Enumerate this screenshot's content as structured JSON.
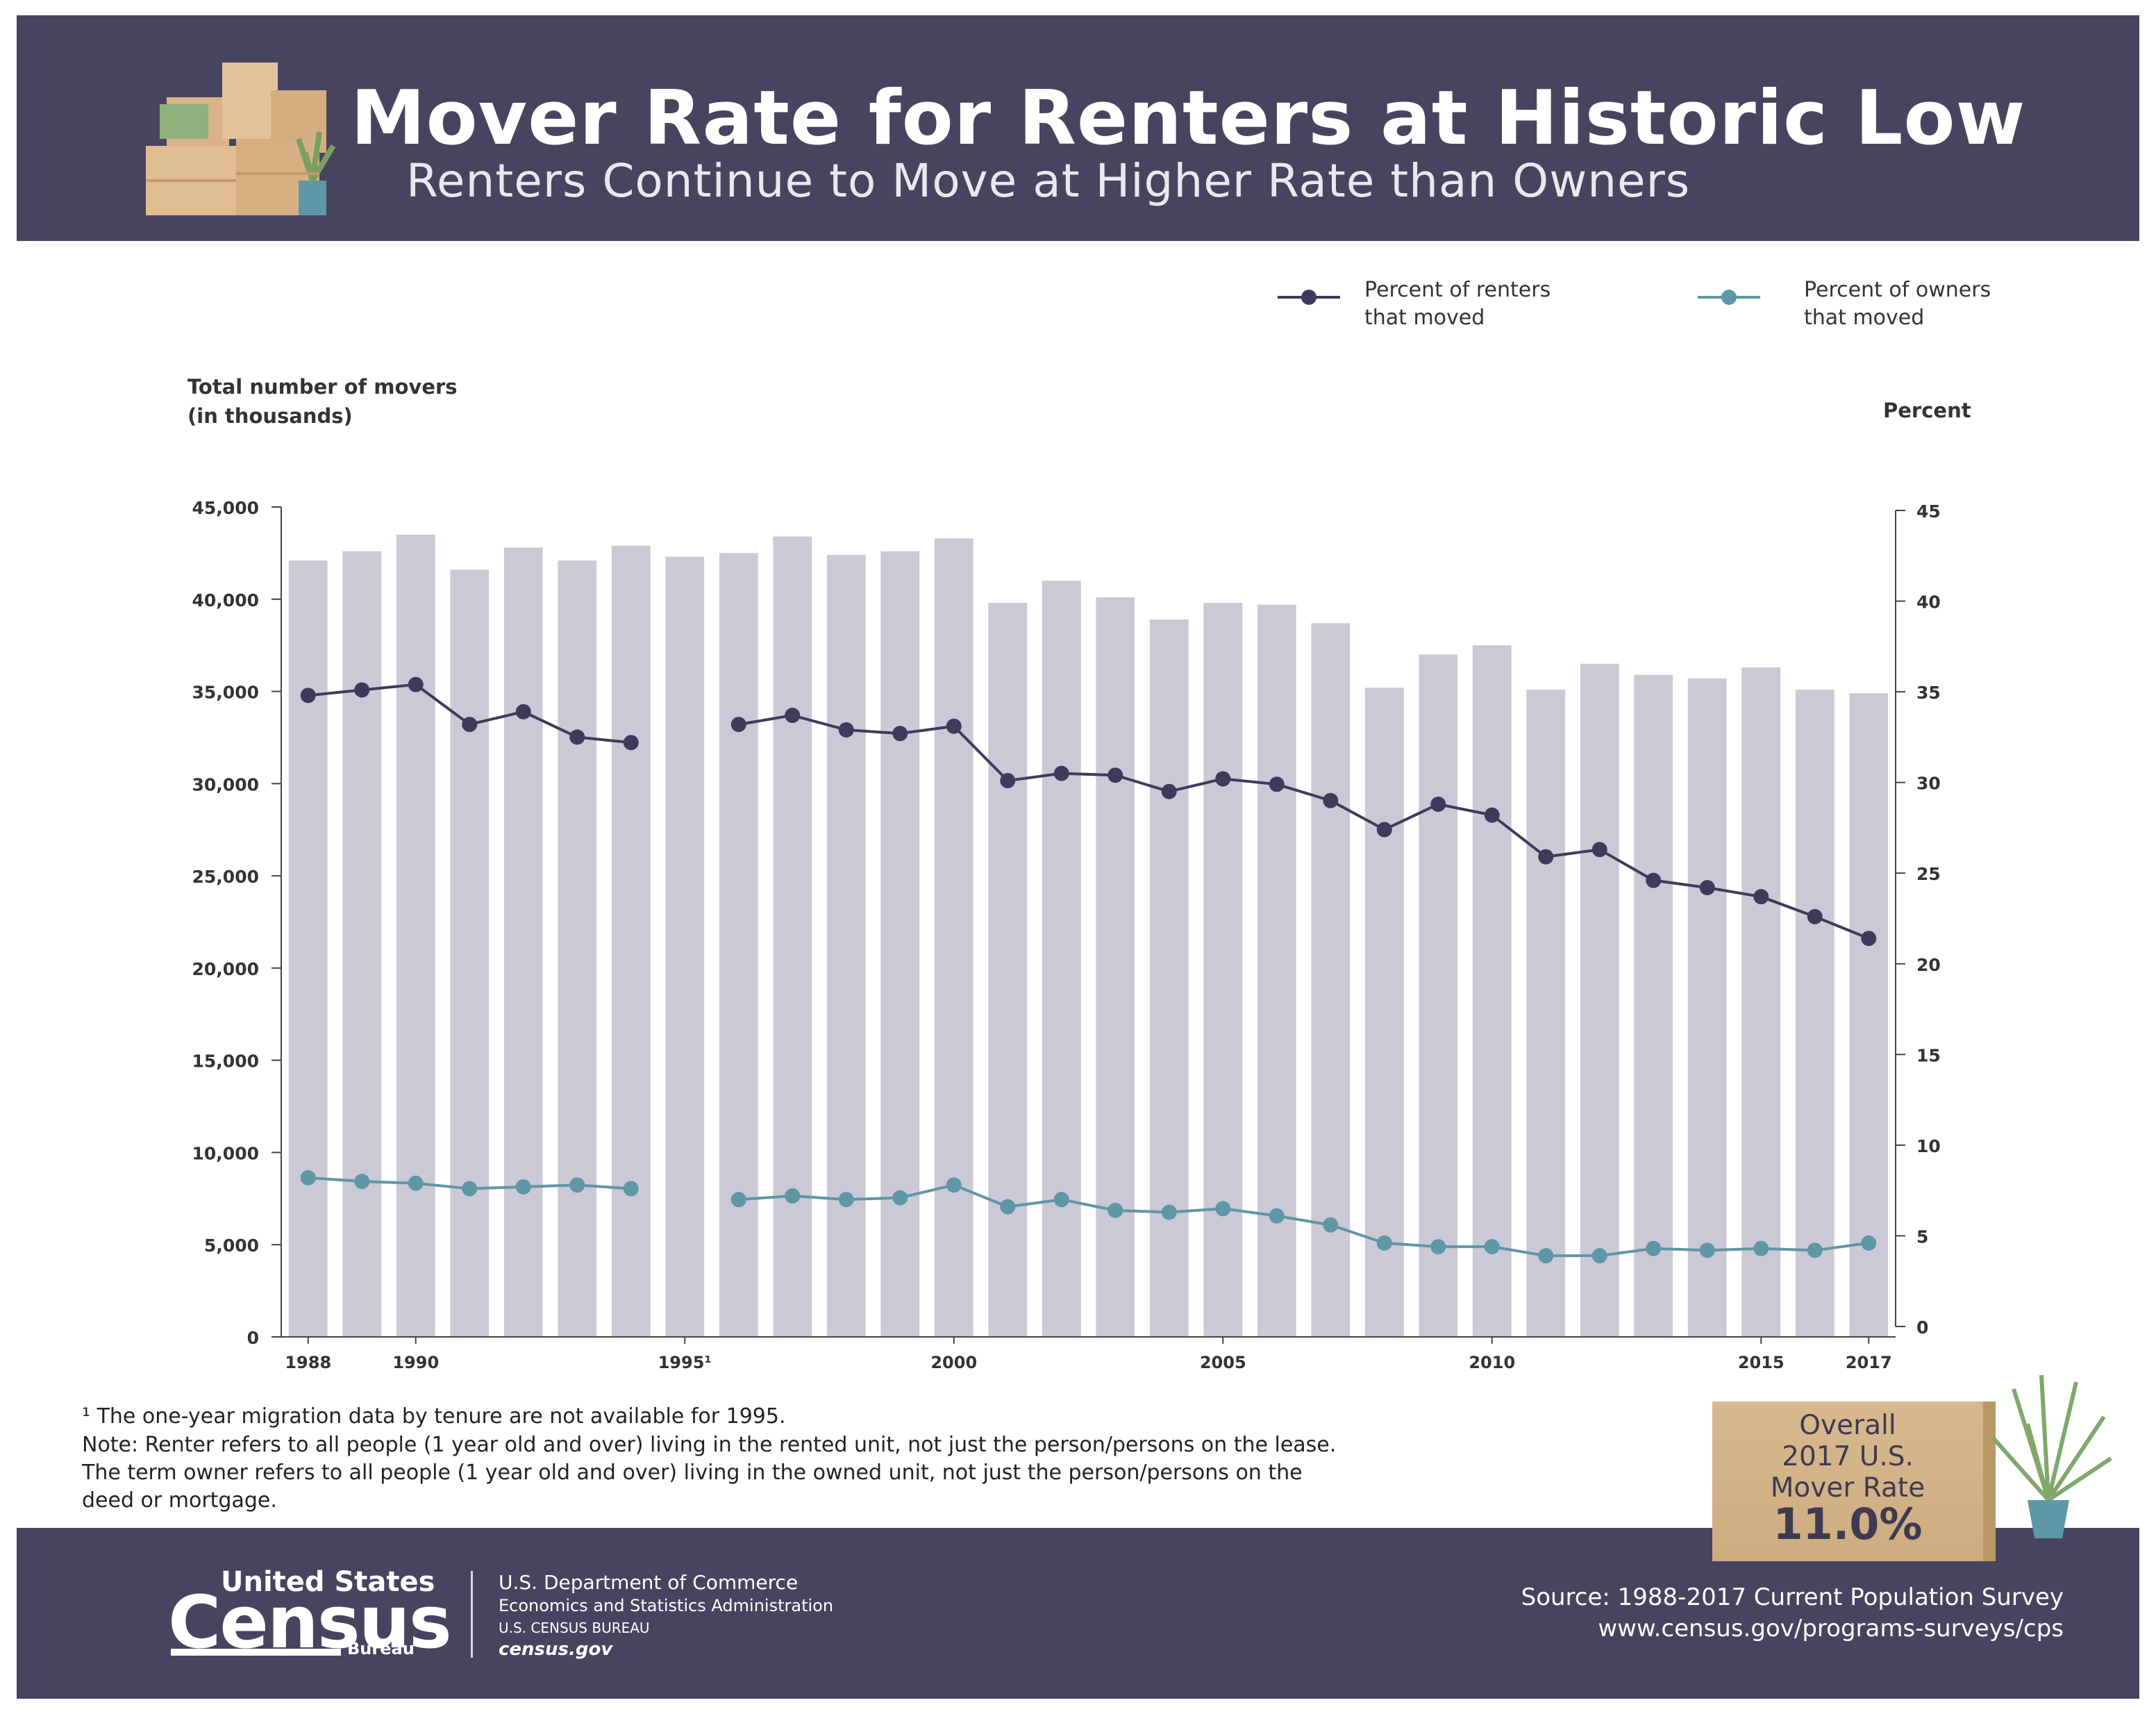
{
  "header": {
    "title": "Mover Rate for Renters at Historic Low",
    "subtitle": "Renters Continue to Move at Higher Rate than Owners"
  },
  "legend": {
    "renters": [
      "Percent of renters",
      "that moved"
    ],
    "owners": [
      "Percent of owners",
      "that moved"
    ]
  },
  "colors": {
    "header_bg": "#47445f",
    "bar": "#cbc9d6",
    "renters_line": "#3f3a5c",
    "owners_line": "#5f97a6"
  },
  "chart_data": {
    "type": "bar",
    "title": "Mover Rate for Renters at Historic Low",
    "ylabel_left": [
      "Total number of movers",
      "(in thousands)"
    ],
    "ylabel_right": "Percent",
    "left_ticks": [
      "0",
      "5,000",
      "10,000",
      "15,000",
      "20,000",
      "25,000",
      "30,000",
      "35,000",
      "40,000",
      "45,000"
    ],
    "right_ticks": [
      "0",
      "5",
      "10",
      "15",
      "20",
      "25",
      "30",
      "35",
      "40",
      "45"
    ],
    "ylim_left": [
      0,
      45000
    ],
    "ylim_right": [
      0,
      45
    ],
    "x_tick_labels": [
      "1988",
      "1990",
      "1995¹",
      "2000",
      "2005",
      "2010",
      "2015",
      "2017"
    ],
    "categories": [
      1988,
      1989,
      1990,
      1991,
      1992,
      1993,
      1994,
      1995,
      1996,
      1997,
      1998,
      1999,
      2000,
      2001,
      2002,
      2003,
      2004,
      2005,
      2006,
      2007,
      2008,
      2009,
      2010,
      2011,
      2012,
      2013,
      2014,
      2015,
      2016,
      2017
    ],
    "series": [
      {
        "name": "Total number of movers (in thousands)",
        "kind": "bar",
        "axis": "left",
        "values": [
          42100,
          42600,
          43500,
          41600,
          42800,
          42100,
          42900,
          42300,
          42500,
          43400,
          42400,
          42600,
          43300,
          39800,
          41000,
          40100,
          38900,
          39800,
          39700,
          38700,
          35200,
          37000,
          37500,
          35100,
          36500,
          35900,
          35700,
          36300,
          35100,
          34900
        ]
      },
      {
        "name": "Percent of renters that moved",
        "kind": "line",
        "axis": "right",
        "values": [
          34.8,
          35.1,
          35.4,
          33.2,
          33.9,
          32.5,
          32.2,
          null,
          33.2,
          33.7,
          32.9,
          32.7,
          33.1,
          30.1,
          30.5,
          30.4,
          29.5,
          30.2,
          29.9,
          29.0,
          27.4,
          28.8,
          28.2,
          25.9,
          26.3,
          24.6,
          24.2,
          23.7,
          22.6,
          21.4
        ]
      },
      {
        "name": "Percent of owners that moved",
        "kind": "line",
        "axis": "right",
        "values": [
          8.2,
          8.0,
          7.9,
          7.6,
          7.7,
          7.8,
          7.6,
          null,
          7.0,
          7.2,
          7.0,
          7.1,
          7.8,
          6.6,
          7.0,
          6.4,
          6.3,
          6.5,
          6.1,
          5.6,
          4.6,
          4.4,
          4.4,
          3.9,
          3.9,
          4.3,
          4.2,
          4.3,
          4.2,
          4.6
        ]
      }
    ]
  },
  "notes": {
    "footnote": "¹ The one-year migration data by tenure are not available for 1995.",
    "note_lines": [
      "Note: Renter refers to all people (1 year old and over) living in the rented unit, not just the person/persons on the lease.",
      "The term owner refers to all people (1 year old and over) living in the owned unit, not just the person/persons on the",
      "deed or mortgage."
    ]
  },
  "callout": {
    "lines": [
      "Overall",
      "2017 U.S.",
      "Mover Rate"
    ],
    "value": "11.0%"
  },
  "footer": {
    "logo_top": "United States",
    "logo_main": "Census",
    "logo_sub": "Bureau",
    "dept_lines": [
      "U.S. Department of Commerce",
      "Economics and Statistics Administration",
      "U.S. CENSUS BUREAU",
      "census.gov"
    ],
    "source_line": "Source: 1988-2017 Current Population Survey",
    "source_url": "www.census.gov/programs-surveys/cps"
  }
}
